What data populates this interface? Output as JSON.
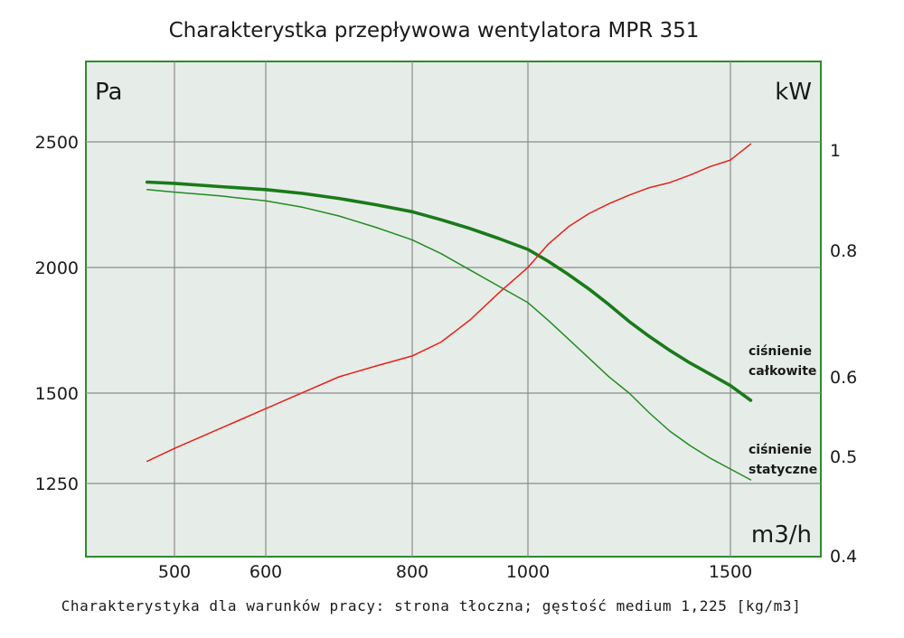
{
  "chart_data": {
    "type": "line",
    "title": "Charakterystka przepływowa wentylatora MPR 351",
    "footer": "Charakterystyka dla warunków pracy: strona tłoczna; gęstość medium 1,225 [kg/m3]",
    "xlabel": "m3/h",
    "ylabel_left": "Pa",
    "ylabel_right": "kW",
    "x_ticks": [
      500,
      600,
      800,
      1000,
      1500
    ],
    "y_left_ticks": [
      1250,
      1500,
      2000,
      2500
    ],
    "y_right_ticks": [
      "0.4",
      "0.5",
      "0.6",
      "0.8",
      "1"
    ],
    "y_right_tick_values": [
      0.4,
      0.5,
      0.6,
      0.8,
      1.0
    ],
    "grid": true,
    "colors": {
      "plot_background": "#e6ede8",
      "frame": "#2e8b2e",
      "grid": "#8c8c8c",
      "pressure_total": "#1a7a1a",
      "pressure_static": "#228b22",
      "power": "#e8201a"
    },
    "series": [
      {
        "name": "ciśnienie całkowite",
        "label_lines": [
          "ciśnienie",
          "całkowite"
        ],
        "axis": "left",
        "x": [
          470,
          500,
          550,
          600,
          650,
          700,
          750,
          800,
          850,
          900,
          950,
          1000,
          1050,
          1100,
          1150,
          1200,
          1250,
          1300,
          1350,
          1400,
          1450,
          1500,
          1550
        ],
        "y": [
          2340,
          2335,
          2322,
          2310,
          2295,
          2275,
          2250,
          2222,
          2190,
          2155,
          2115,
          2072,
          2025,
          1972,
          1915,
          1852,
          1785,
          1725,
          1670,
          1620,
          1575,
          1530,
          1480
        ]
      },
      {
        "name": "ciśnienie statyczne",
        "label_lines": [
          "ciśnienie",
          "statyczne"
        ],
        "axis": "left",
        "x": [
          470,
          500,
          550,
          600,
          650,
          700,
          750,
          800,
          850,
          900,
          950,
          1000,
          1050,
          1100,
          1150,
          1200,
          1250,
          1300,
          1350,
          1400,
          1450,
          1500,
          1550
        ],
        "y": [
          2310,
          2300,
          2285,
          2265,
          2240,
          2205,
          2160,
          2110,
          2055,
          1990,
          1925,
          1860,
          1790,
          1715,
          1640,
          1565,
          1500,
          1445,
          1395,
          1355,
          1320,
          1290,
          1260
        ]
      },
      {
        "name": "",
        "axis": "right",
        "x": [
          470,
          500,
          550,
          600,
          650,
          700,
          750,
          800,
          850,
          900,
          950,
          1000,
          1050,
          1100,
          1150,
          1200,
          1250,
          1300,
          1350,
          1400,
          1450,
          1500,
          1550
        ],
        "y": [
          0.495,
          0.51,
          0.535,
          0.56,
          0.58,
          0.6,
          0.617,
          0.633,
          0.655,
          0.69,
          0.733,
          0.773,
          0.812,
          0.847,
          0.873,
          0.893,
          0.91,
          0.925,
          0.935,
          0.95,
          0.967,
          0.98,
          1.012
        ]
      }
    ]
  }
}
